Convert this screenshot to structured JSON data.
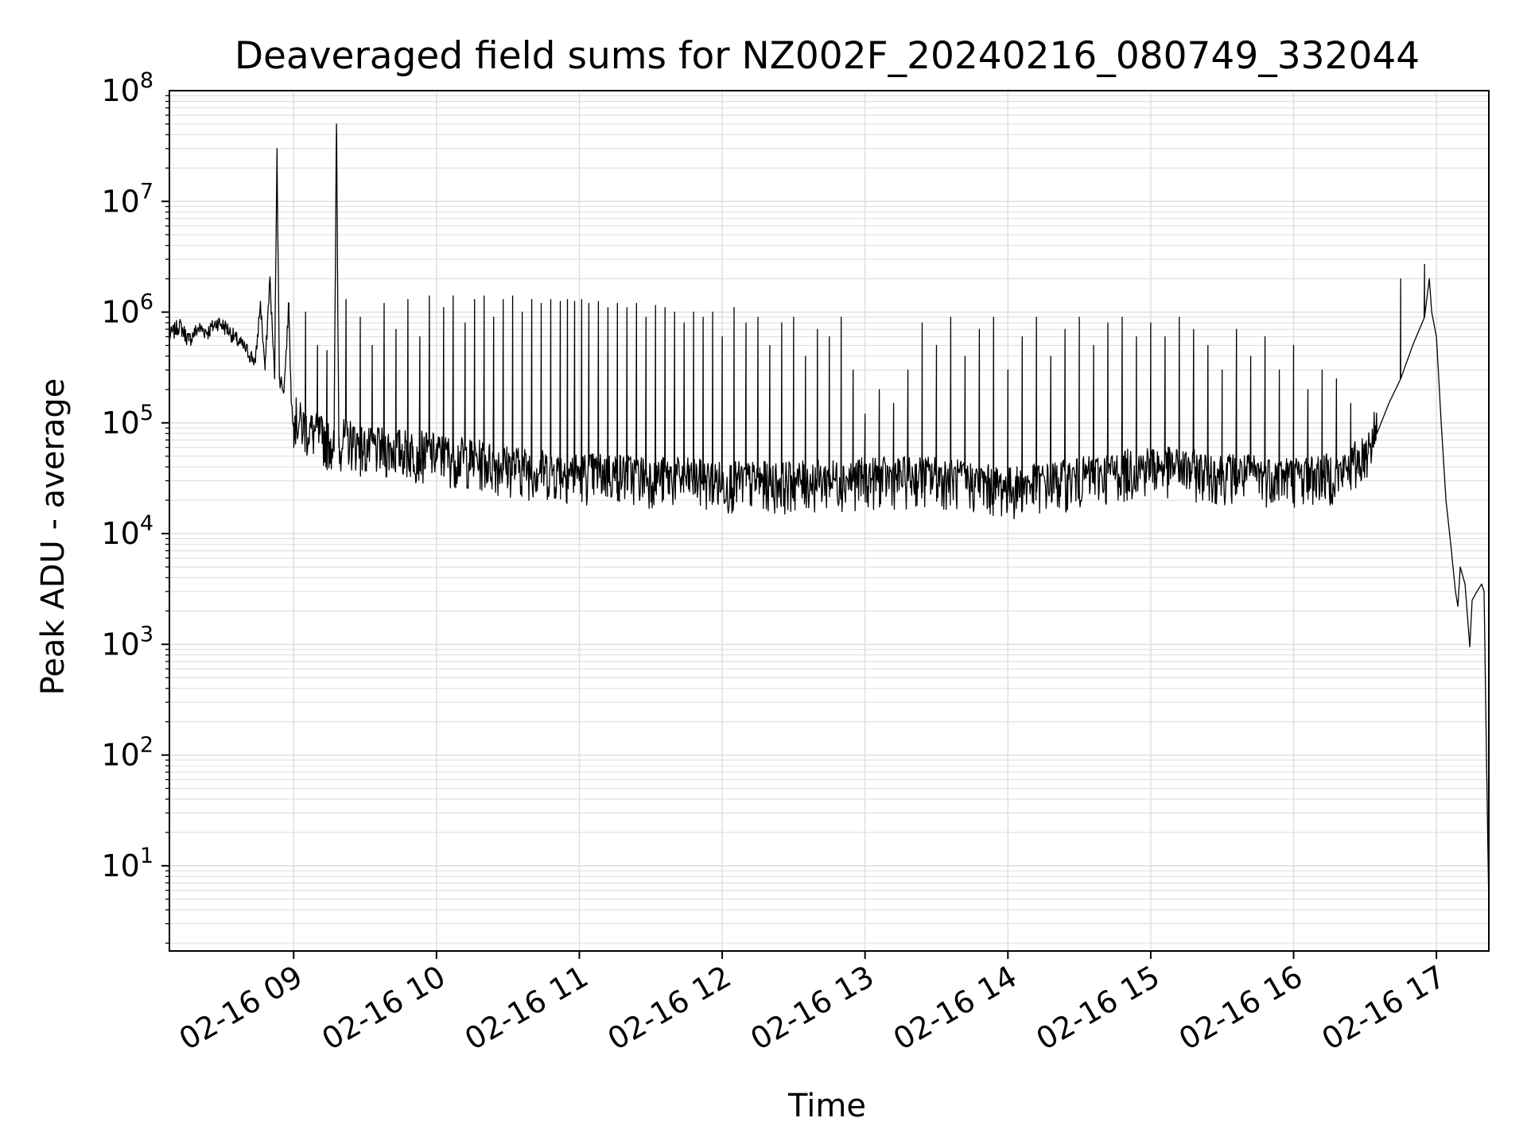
{
  "chart_data": {
    "type": "line",
    "title": "Deaveraged field sums for NZ002F_20240216_080749_332044",
    "xlabel": "Time",
    "ylabel": "Peak ADU - average",
    "yscale": "log",
    "ylim": [
      1.7,
      100000000
    ],
    "xlim": [
      "2024-02-16 08:07:49",
      "2024-02-16 17:22:00"
    ],
    "grid": true,
    "legend": "none",
    "line_color": "#000000",
    "grid_color": "#e0e0e0",
    "x_ticks": [
      {
        "time": "2024-02-16 09:00",
        "label": "02-16 09"
      },
      {
        "time": "2024-02-16 10:00",
        "label": "02-16 10"
      },
      {
        "time": "2024-02-16 11:00",
        "label": "02-16 11"
      },
      {
        "time": "2024-02-16 12:00",
        "label": "02-16 12"
      },
      {
        "time": "2024-02-16 13:00",
        "label": "02-16 13"
      },
      {
        "time": "2024-02-16 14:00",
        "label": "02-16 14"
      },
      {
        "time": "2024-02-16 15:00",
        "label": "02-16 15"
      },
      {
        "time": "2024-02-16 16:00",
        "label": "02-16 16"
      },
      {
        "time": "2024-02-16 17:00",
        "label": "02-16 17"
      }
    ],
    "y_ticks": [
      {
        "value": 10,
        "base": "10",
        "exp": "1"
      },
      {
        "value": 100,
        "base": "10",
        "exp": "2"
      },
      {
        "value": 1000,
        "base": "10",
        "exp": "3"
      },
      {
        "value": 10000,
        "base": "10",
        "exp": "4"
      },
      {
        "value": 100000,
        "base": "10",
        "exp": "5"
      },
      {
        "value": 1000000,
        "base": "10",
        "exp": "6"
      },
      {
        "value": 10000000,
        "base": "10",
        "exp": "7"
      },
      {
        "value": 100000000,
        "base": "10",
        "exp": "8"
      }
    ],
    "series": [
      {
        "points": [
          [
            "2024-02-16 08:08",
            600000
          ],
          [
            "2024-02-16 08:12",
            750000
          ],
          [
            "2024-02-16 08:16",
            550000
          ],
          [
            "2024-02-16 08:20",
            700000
          ],
          [
            "2024-02-16 08:24",
            650000
          ],
          [
            "2024-02-16 08:28",
            800000
          ],
          [
            "2024-02-16 08:32",
            700000
          ],
          [
            "2024-02-16 08:36",
            550000
          ],
          [
            "2024-02-16 08:40",
            450000
          ],
          [
            "2024-02-16 08:44",
            350000
          ],
          [
            "2024-02-16 08:46",
            1200000
          ],
          [
            "2024-02-16 08:48",
            300000
          ],
          [
            "2024-02-16 08:50",
            2000000
          ],
          [
            "2024-02-16 08:52",
            250000
          ],
          [
            "2024-02-16 08:53",
            30000000
          ],
          [
            "2024-02-16 08:54",
            250000
          ],
          [
            "2024-02-16 08:56",
            200000
          ],
          [
            "2024-02-16 08:58",
            1200000
          ],
          [
            "2024-02-16 08:59",
            150000
          ],
          [
            "2024-02-16 09:00",
            100000
          ],
          [
            "2024-02-16 09:04",
            80000
          ],
          [
            "2024-02-16 09:08",
            70000
          ],
          [
            "2024-02-16 09:12",
            65000
          ],
          [
            "2024-02-16 09:15",
            60000
          ],
          [
            "2024-02-16 09:17",
            55000
          ],
          [
            "2024-02-16 09:18",
            50000000
          ],
          [
            "2024-02-16 09:19",
            60000
          ],
          [
            "2024-02-16 09:25",
            60000
          ],
          [
            "2024-02-16 09:30",
            50000
          ],
          [
            "2024-02-16 09:40",
            50000
          ],
          [
            "2024-02-16 09:50",
            48000
          ],
          [
            "2024-02-16 10:00",
            45000
          ],
          [
            "2024-02-16 10:15",
            40000
          ],
          [
            "2024-02-16 10:30",
            35000
          ],
          [
            "2024-02-16 10:45",
            32000
          ],
          [
            "2024-02-16 11:00",
            30000
          ],
          [
            "2024-02-16 11:15",
            30000
          ],
          [
            "2024-02-16 11:30",
            28000
          ],
          [
            "2024-02-16 11:45",
            27000
          ],
          [
            "2024-02-16 12:00",
            25000
          ],
          [
            "2024-02-16 12:30",
            25000
          ],
          [
            "2024-02-16 13:00",
            27000
          ],
          [
            "2024-02-16 13:30",
            28000
          ],
          [
            "2024-02-16 14:00",
            22000
          ],
          [
            "2024-02-16 14:30",
            27000
          ],
          [
            "2024-02-16 15:00",
            35000
          ],
          [
            "2024-02-16 15:30",
            30000
          ],
          [
            "2024-02-16 16:00",
            28000
          ],
          [
            "2024-02-16 16:20",
            30000
          ],
          [
            "2024-02-16 16:30",
            45000
          ],
          [
            "2024-02-16 16:35",
            80000
          ],
          [
            "2024-02-16 16:40",
            150000
          ],
          [
            "2024-02-16 16:45",
            250000
          ],
          [
            "2024-02-16 16:50",
            500000
          ],
          [
            "2024-02-16 16:55",
            900000
          ],
          [
            "2024-02-16 16:57",
            2000000
          ],
          [
            "2024-02-16 16:58",
            1000000
          ],
          [
            "2024-02-16 17:00",
            600000
          ],
          [
            "2024-02-16 17:02",
            100000
          ],
          [
            "2024-02-16 17:04",
            20000
          ],
          [
            "2024-02-16 17:06",
            8000
          ],
          [
            "2024-02-16 17:08",
            3000
          ],
          [
            "2024-02-16 17:09",
            2200
          ],
          [
            "2024-02-16 17:10",
            5000
          ],
          [
            "2024-02-16 17:12",
            3500
          ],
          [
            "2024-02-16 17:14",
            950
          ],
          [
            "2024-02-16 17:15",
            2500
          ],
          [
            "2024-02-16 17:17",
            3000
          ],
          [
            "2024-02-16 17:19",
            3500
          ],
          [
            "2024-02-16 17:20",
            3000
          ],
          [
            "2024-02-16 17:21",
            100
          ],
          [
            "2024-02-16 17:22",
            4
          ]
        ],
        "noise_band": {
          "start": "2024-02-16 09:00",
          "end": "2024-02-16 16:35",
          "low_factor": 0.6,
          "high_factor": 1.8
        },
        "spikes": [
          [
            "2024-02-16 09:05",
            1000000
          ],
          [
            "2024-02-16 09:10",
            500000
          ],
          [
            "2024-02-16 09:14",
            450000
          ],
          [
            "2024-02-16 09:22",
            1300000
          ],
          [
            "2024-02-16 09:28",
            900000
          ],
          [
            "2024-02-16 09:33",
            500000
          ],
          [
            "2024-02-16 09:38",
            1200000
          ],
          [
            "2024-02-16 09:43",
            700000
          ],
          [
            "2024-02-16 09:48",
            1300000
          ],
          [
            "2024-02-16 09:53",
            600000
          ],
          [
            "2024-02-16 09:57",
            1400000
          ],
          [
            "2024-02-16 10:03",
            1100000
          ],
          [
            "2024-02-16 10:07",
            1400000
          ],
          [
            "2024-02-16 10:12",
            800000
          ],
          [
            "2024-02-16 10:16",
            1300000
          ],
          [
            "2024-02-16 10:20",
            1400000
          ],
          [
            "2024-02-16 10:24",
            900000
          ],
          [
            "2024-02-16 10:28",
            1300000
          ],
          [
            "2024-02-16 10:32",
            1400000
          ],
          [
            "2024-02-16 10:36",
            1000000
          ],
          [
            "2024-02-16 10:40",
            1300000
          ],
          [
            "2024-02-16 10:44",
            1200000
          ],
          [
            "2024-02-16 10:48",
            1300000
          ],
          [
            "2024-02-16 10:52",
            1250000
          ],
          [
            "2024-02-16 10:55",
            1300000
          ],
          [
            "2024-02-16 10:58",
            1250000
          ],
          [
            "2024-02-16 11:01",
            1300000
          ],
          [
            "2024-02-16 11:04",
            1200000
          ],
          [
            "2024-02-16 11:08",
            1250000
          ],
          [
            "2024-02-16 11:12",
            1100000
          ],
          [
            "2024-02-16 11:16",
            1200000
          ],
          [
            "2024-02-16 11:20",
            1100000
          ],
          [
            "2024-02-16 11:24",
            1200000
          ],
          [
            "2024-02-16 11:28",
            900000
          ],
          [
            "2024-02-16 11:32",
            1150000
          ],
          [
            "2024-02-16 11:36",
            1100000
          ],
          [
            "2024-02-16 11:40",
            1000000
          ],
          [
            "2024-02-16 11:44",
            800000
          ],
          [
            "2024-02-16 11:48",
            1000000
          ],
          [
            "2024-02-16 11:52",
            900000
          ],
          [
            "2024-02-16 11:56",
            1000000
          ],
          [
            "2024-02-16 12:00",
            600000
          ],
          [
            "2024-02-16 12:05",
            1100000
          ],
          [
            "2024-02-16 12:10",
            800000
          ],
          [
            "2024-02-16 12:15",
            900000
          ],
          [
            "2024-02-16 12:20",
            500000
          ],
          [
            "2024-02-16 12:25",
            800000
          ],
          [
            "2024-02-16 12:30",
            900000
          ],
          [
            "2024-02-16 12:35",
            400000
          ],
          [
            "2024-02-16 12:40",
            700000
          ],
          [
            "2024-02-16 12:45",
            600000
          ],
          [
            "2024-02-16 12:50",
            900000
          ],
          [
            "2024-02-16 12:55",
            300000
          ],
          [
            "2024-02-16 13:00",
            120000
          ],
          [
            "2024-02-16 13:06",
            200000
          ],
          [
            "2024-02-16 13:12",
            150000
          ],
          [
            "2024-02-16 13:18",
            300000
          ],
          [
            "2024-02-16 13:24",
            800000
          ],
          [
            "2024-02-16 13:30",
            500000
          ],
          [
            "2024-02-16 13:36",
            900000
          ],
          [
            "2024-02-16 13:42",
            400000
          ],
          [
            "2024-02-16 13:48",
            700000
          ],
          [
            "2024-02-16 13:54",
            900000
          ],
          [
            "2024-02-16 14:00",
            300000
          ],
          [
            "2024-02-16 14:06",
            600000
          ],
          [
            "2024-02-16 14:12",
            900000
          ],
          [
            "2024-02-16 14:18",
            400000
          ],
          [
            "2024-02-16 14:24",
            700000
          ],
          [
            "2024-02-16 14:30",
            900000
          ],
          [
            "2024-02-16 14:36",
            500000
          ],
          [
            "2024-02-16 14:42",
            800000
          ],
          [
            "2024-02-16 14:48",
            900000
          ],
          [
            "2024-02-16 14:54",
            600000
          ],
          [
            "2024-02-16 15:00",
            800000
          ],
          [
            "2024-02-16 15:06",
            600000
          ],
          [
            "2024-02-16 15:12",
            900000
          ],
          [
            "2024-02-16 15:18",
            700000
          ],
          [
            "2024-02-16 15:24",
            500000
          ],
          [
            "2024-02-16 15:30",
            300000
          ],
          [
            "2024-02-16 15:36",
            700000
          ],
          [
            "2024-02-16 15:42",
            400000
          ],
          [
            "2024-02-16 15:48",
            600000
          ],
          [
            "2024-02-16 15:54",
            300000
          ],
          [
            "2024-02-16 16:00",
            500000
          ],
          [
            "2024-02-16 16:06",
            200000
          ],
          [
            "2024-02-16 16:12",
            300000
          ],
          [
            "2024-02-16 16:18",
            250000
          ],
          [
            "2024-02-16 16:24",
            150000
          ],
          [
            "2024-02-16 16:45",
            2000000
          ],
          [
            "2024-02-16 16:55",
            2700000
          ]
        ]
      }
    ]
  }
}
